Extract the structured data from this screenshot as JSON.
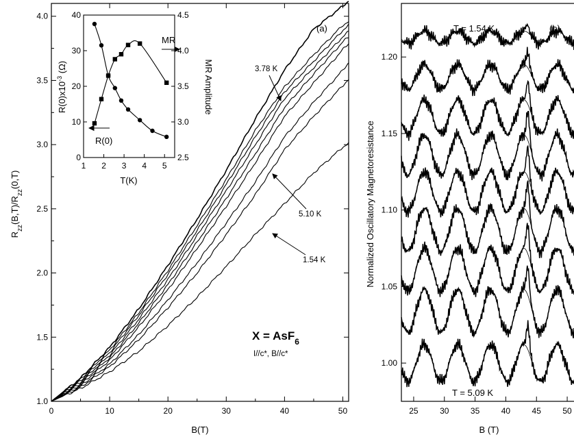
{
  "chart_data": [
    {
      "panel": "(a)",
      "type": "line",
      "xlabel": "B(T)",
      "ylabel_main": "R",
      "ylabel_sub1": "zz",
      "ylabel_mid": "(B,T)/R",
      "ylabel_sub2": "zz",
      "ylabel_end": "(0,T)",
      "xlim": [
        0,
        51
      ],
      "ylim": [
        1.0,
        4.1
      ],
      "xticks": [
        "0",
        "10",
        "20",
        "30",
        "40",
        "50"
      ],
      "yticks": [
        "1.0",
        "1.5",
        "2.0",
        "2.5",
        "3.0",
        "3.5",
        "4.0"
      ],
      "series": [
        {
          "label": "1.54 K",
          "x": [
            0,
            5,
            10,
            15,
            20,
            25,
            30,
            35,
            40,
            45,
            50,
            51
          ],
          "y": [
            1.0,
            1.18,
            1.42,
            1.72,
            2.06,
            2.42,
            2.8,
            3.2,
            3.58,
            3.9,
            4.08,
            4.12
          ]
        },
        {
          "x": [
            0,
            5,
            10,
            15,
            20,
            25,
            30,
            35,
            40,
            45,
            50,
            51
          ],
          "y": [
            1.0,
            1.17,
            1.4,
            1.69,
            2.02,
            2.37,
            2.73,
            3.11,
            3.45,
            3.7,
            3.93,
            3.96
          ]
        },
        {
          "x": [
            0,
            5,
            10,
            15,
            20,
            25,
            30,
            35,
            40,
            45,
            50,
            51
          ],
          "y": [
            1.0,
            1.16,
            1.38,
            1.67,
            1.99,
            2.33,
            2.69,
            3.06,
            3.41,
            3.65,
            3.89,
            3.93
          ]
        },
        {
          "label": "3.78 K",
          "x": [
            0,
            5,
            10,
            15,
            20,
            25,
            30,
            35,
            40,
            45,
            50,
            51
          ],
          "y": [
            1.0,
            1.15,
            1.36,
            1.64,
            1.95,
            2.29,
            2.64,
            3.0,
            3.36,
            3.6,
            3.84,
            3.88
          ]
        },
        {
          "x": [
            0,
            5,
            10,
            15,
            20,
            25,
            30,
            35,
            40,
            45,
            50,
            51
          ],
          "y": [
            1.0,
            1.14,
            1.34,
            1.61,
            1.91,
            2.24,
            2.58,
            2.93,
            3.29,
            3.55,
            3.8,
            3.84
          ]
        },
        {
          "x": [
            0,
            5,
            10,
            15,
            20,
            25,
            30,
            35,
            40,
            45,
            50,
            51
          ],
          "y": [
            1.0,
            1.13,
            1.32,
            1.58,
            1.87,
            2.19,
            2.52,
            2.86,
            3.22,
            3.48,
            3.74,
            3.79
          ]
        },
        {
          "x": [
            0,
            5,
            10,
            15,
            20,
            25,
            30,
            35,
            40,
            45,
            50,
            51
          ],
          "y": [
            1.0,
            1.12,
            1.29,
            1.52,
            1.79,
            2.08,
            2.39,
            2.71,
            3.06,
            3.33,
            3.58,
            3.64
          ]
        },
        {
          "x": [
            0,
            5,
            10,
            15,
            20,
            25,
            30,
            35,
            40,
            45,
            50,
            51
          ],
          "y": [
            1.0,
            1.11,
            1.27,
            1.48,
            1.73,
            2.0,
            2.3,
            2.61,
            2.96,
            3.22,
            3.46,
            3.51
          ]
        },
        {
          "label": "5.10 K",
          "x": [
            0,
            5,
            10,
            15,
            20,
            25,
            30,
            35,
            40,
            45,
            50,
            51
          ],
          "y": [
            1.0,
            1.1,
            1.23,
            1.39,
            1.59,
            1.81,
            2.05,
            2.3,
            2.54,
            2.78,
            2.98,
            3.01
          ]
        }
      ],
      "annotations": [
        "3.78 K",
        "5.10 K",
        "1.54 K",
        "(a)"
      ],
      "compound_label_prefix": "X = AsF",
      "compound_label_sub": "6",
      "orientation_label": "I//c*, B//c*",
      "inset": {
        "xlabel": "T(K)",
        "ylabel_left": "R(0)x10",
        "ylabel_left_sup": "-3",
        "ylabel_left_unit": "(Ω)",
        "ylabel_right": "MR Amplitude",
        "xlim": [
          1,
          5.5
        ],
        "ylim_left": [
          0,
          40
        ],
        "ylim_right": [
          2.5,
          4.5
        ],
        "xticks": [
          "1",
          "2",
          "3",
          "4",
          "5"
        ],
        "yticks_left": [
          "0",
          "10",
          "20",
          "30",
          "40"
        ],
        "yticks_right": [
          "2.5",
          "3.0",
          "3.5",
          "4.0",
          "4.5"
        ],
        "series": [
          {
            "name": "R(0)",
            "marker": "circle",
            "x": [
              1.54,
              1.88,
              2.22,
              2.55,
              2.86,
              3.2,
              3.78,
              4.4,
              5.1
            ],
            "y": [
              37.5,
              31.5,
              23.0,
              19.5,
              16.0,
              13.5,
              10.5,
              7.5,
              5.8
            ]
          },
          {
            "name": "MR",
            "marker": "square",
            "x": [
              1.54,
              1.88,
              2.22,
              2.55,
              2.86,
              3.2,
              3.78,
              5.1
            ],
            "y": [
              2.98,
              3.32,
              3.65,
              3.88,
              3.95,
              4.08,
              4.1,
              3.55
            ]
          }
        ],
        "arrow_labels": [
          "MR",
          "R(0)"
        ]
      }
    },
    {
      "panel": "(b)",
      "type": "line",
      "xlabel": "B (T)",
      "ylabel": "Normalized Oscillatory Magnetoresistance",
      "xlim": [
        23,
        52
      ],
      "ylim": [
        0.975,
        1.235
      ],
      "xticks": [
        "25",
        "30",
        "35",
        "40",
        "45",
        "50"
      ],
      "yticks": [
        "1.00",
        "1.05",
        "1.10",
        "1.15",
        "1.20"
      ],
      "offsets": [
        1.213,
        1.187,
        1.161,
        1.136,
        1.112,
        1.087,
        1.061,
        1.034,
        1.0
      ],
      "amplitudes": [
        0.004,
        0.008,
        0.011,
        0.013,
        0.013,
        0.014,
        0.014,
        0.014,
        0.012
      ],
      "annotations": [
        "T = 1.54 K",
        "T = 5.09 K",
        "(b)"
      ]
    }
  ]
}
